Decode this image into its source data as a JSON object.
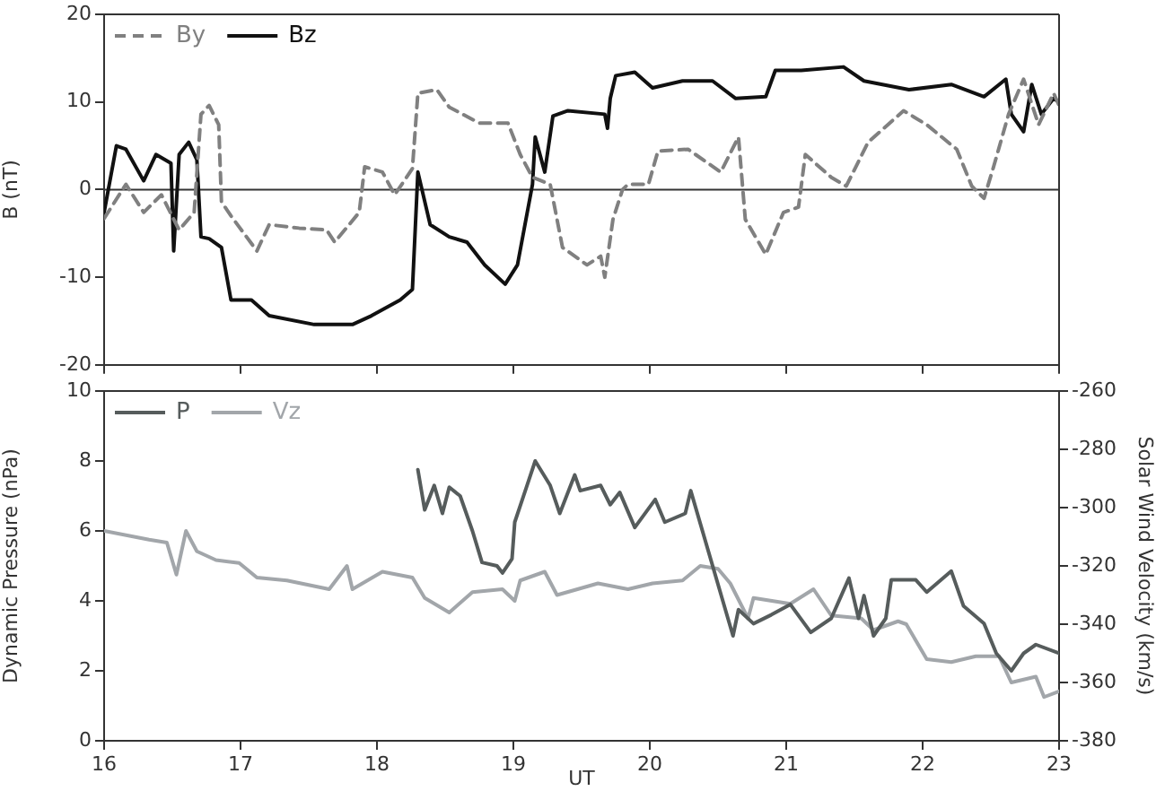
{
  "chart_data": [
    {
      "type": "line",
      "ylabel": "B (nT)",
      "xlim": [
        16,
        23
      ],
      "xticks": [
        16,
        17,
        18,
        19,
        20,
        21,
        22,
        23
      ],
      "ylim": [
        -20,
        20
      ],
      "yticks": [
        -20,
        -10,
        0,
        10,
        20
      ],
      "tick_labels": "y",
      "grid": false,
      "legend": "top left",
      "ref_lines": [
        {
          "axis": "y",
          "value": 0
        }
      ],
      "series": [
        {
          "name": "By",
          "color": "#808080",
          "line_style": "dashed",
          "x": [
            16.0,
            16.16,
            16.29,
            16.42,
            16.55,
            16.66,
            16.71,
            16.77,
            16.84,
            16.86,
            16.93,
            17.12,
            17.21,
            17.43,
            17.63,
            17.69,
            17.87,
            17.91,
            18.04,
            18.13,
            18.26,
            18.3,
            18.44,
            18.53,
            18.75,
            18.96,
            19.05,
            19.14,
            19.27,
            19.36,
            19.54,
            19.64,
            19.67,
            19.73,
            19.8,
            19.84,
            19.99,
            20.06,
            20.28,
            20.52,
            20.65,
            20.7,
            20.85,
            20.98,
            21.09,
            21.14,
            21.33,
            21.44,
            21.6,
            21.86,
            22.03,
            22.25,
            22.36,
            22.45,
            22.52,
            22.63,
            22.74,
            22.85,
            22.96,
            23.0
          ],
          "values": [
            -3.3,
            0.6,
            -2.6,
            -0.6,
            -4.6,
            -2.6,
            8.6,
            9.6,
            7.4,
            -1.4,
            -3,
            -7,
            -4,
            -4.4,
            -4.6,
            -6,
            -2.6,
            2.6,
            2,
            -0.6,
            2.4,
            11,
            11.4,
            9.4,
            7.6,
            7.6,
            4,
            1.4,
            0.6,
            -6.6,
            -8.6,
            -7.6,
            -10,
            -3.4,
            0,
            0.6,
            0.6,
            4.4,
            4.6,
            2,
            6,
            -3.4,
            -7.4,
            -2.6,
            -2,
            4,
            1.4,
            0.4,
            5.4,
            9,
            7.4,
            4.6,
            0.4,
            -1,
            2.6,
            8.6,
            12.6,
            7.4,
            11,
            9.6
          ]
        },
        {
          "name": "Bz",
          "color": "#111111",
          "line_style": "solid",
          "x": [
            16.0,
            16.09,
            16.16,
            16.29,
            16.38,
            16.49,
            16.51,
            16.55,
            16.62,
            16.68,
            16.71,
            16.77,
            16.86,
            16.93,
            17.08,
            17.21,
            17.54,
            17.82,
            17.96,
            18.17,
            18.26,
            18.3,
            18.39,
            18.53,
            18.66,
            18.79,
            18.94,
            19.03,
            19.14,
            19.16,
            19.23,
            19.29,
            19.4,
            19.67,
            19.69,
            19.71,
            19.75,
            19.89,
            20.02,
            20.24,
            20.46,
            20.63,
            20.85,
            20.92,
            21.11,
            21.42,
            21.57,
            21.9,
            22.21,
            22.45,
            22.61,
            22.65,
            22.74,
            22.8,
            22.87,
            22.96,
            23.0
          ],
          "values": [
            -2.6,
            5,
            4.6,
            1,
            4,
            3,
            -7,
            4,
            5.4,
            3.4,
            -5.4,
            -5.6,
            -6.6,
            -12.6,
            -12.6,
            -14.4,
            -15.4,
            -15.4,
            -14.4,
            -12.6,
            -11.4,
            2,
            -4,
            -5.4,
            -6,
            -8.6,
            -10.8,
            -8.6,
            0.6,
            6,
            2,
            8.4,
            9,
            8.6,
            7,
            10.4,
            13,
            13.4,
            11.6,
            12.4,
            12.4,
            10.4,
            10.6,
            13.6,
            13.6,
            14,
            12.4,
            11.4,
            12,
            10.6,
            12.6,
            8.6,
            6.6,
            12,
            8.6,
            10.4,
            10
          ]
        }
      ]
    },
    {
      "type": "line",
      "xlabel": "UT",
      "ylabel": "Dynamic Pressure (nPa)",
      "y2label": "Solar Wind Velocity (km/s)",
      "xlim": [
        16,
        23
      ],
      "xticks": [
        16,
        17,
        18,
        19,
        20,
        21,
        22,
        23
      ],
      "ylim": [
        0,
        10
      ],
      "yticks": [
        0,
        2,
        4,
        6,
        8,
        10
      ],
      "y2lim": [
        -380,
        -260
      ],
      "y2ticks": [
        -380,
        -360,
        -340,
        -320,
        -300,
        -280,
        -260
      ],
      "grid": false,
      "legend": "top left",
      "series": [
        {
          "name": "P",
          "color": "#565c5c",
          "line_style": "solid",
          "x": [
            18.3,
            18.35,
            18.42,
            18.48,
            18.53,
            18.61,
            18.7,
            18.77,
            18.88,
            18.92,
            18.99,
            19.01,
            19.1,
            19.16,
            19.27,
            19.34,
            19.45,
            19.49,
            19.64,
            19.71,
            19.78,
            19.89,
            20.04,
            20.11,
            20.26,
            20.3,
            20.61,
            20.65,
            20.76,
            20.89,
            21.03,
            21.18,
            21.33,
            21.46,
            21.53,
            21.57,
            21.64,
            21.73,
            21.77,
            21.95,
            22.03,
            22.21,
            22.3,
            22.45,
            22.54,
            22.65,
            22.74,
            22.83,
            23.0
          ],
          "values": [
            7.75,
            6.6,
            7.3,
            6.5,
            7.25,
            7.0,
            6.0,
            5.1,
            5.0,
            4.8,
            5.2,
            6.25,
            7.3,
            8.0,
            7.3,
            6.5,
            7.6,
            7.15,
            7.3,
            6.75,
            7.1,
            6.1,
            6.9,
            6.25,
            6.5,
            7.15,
            3.0,
            3.75,
            3.35,
            3.6,
            3.9,
            3.1,
            3.5,
            4.65,
            3.5,
            4.15,
            3.0,
            3.5,
            4.6,
            4.6,
            4.25,
            4.85,
            3.85,
            3.35,
            2.5,
            2.0,
            2.5,
            2.75,
            2.5
          ]
        },
        {
          "name": "Vz",
          "color": "#a2a6aa",
          "line_style": "solid",
          "axis": "y2",
          "x": [
            16.0,
            16.33,
            16.46,
            16.53,
            16.6,
            16.68,
            16.82,
            16.99,
            17.12,
            17.34,
            17.65,
            17.78,
            17.82,
            18.04,
            18.26,
            18.35,
            18.53,
            18.7,
            18.92,
            19.01,
            19.05,
            19.23,
            19.32,
            19.62,
            19.84,
            20.02,
            20.24,
            20.37,
            20.5,
            20.59,
            20.72,
            20.76,
            21.03,
            21.2,
            21.33,
            21.55,
            21.64,
            21.82,
            21.88,
            22.03,
            22.21,
            22.39,
            22.56,
            22.65,
            22.83,
            22.89,
            23.0
          ],
          "values": [
            -308,
            -311,
            -312,
            -323,
            -308,
            -315,
            -318,
            -319,
            -324,
            -325,
            -328,
            -320,
            -328,
            -322,
            -324,
            -331,
            -336,
            -329,
            -328,
            -332,
            -325,
            -322,
            -330,
            -326,
            -328,
            -326,
            -325,
            -320,
            -321,
            -326,
            -338,
            -331,
            -333,
            -328,
            -337,
            -338,
            -342,
            -339,
            -340,
            -352,
            -353,
            -351,
            -351,
            -360,
            -358,
            -365,
            -363
          ]
        }
      ]
    }
  ]
}
